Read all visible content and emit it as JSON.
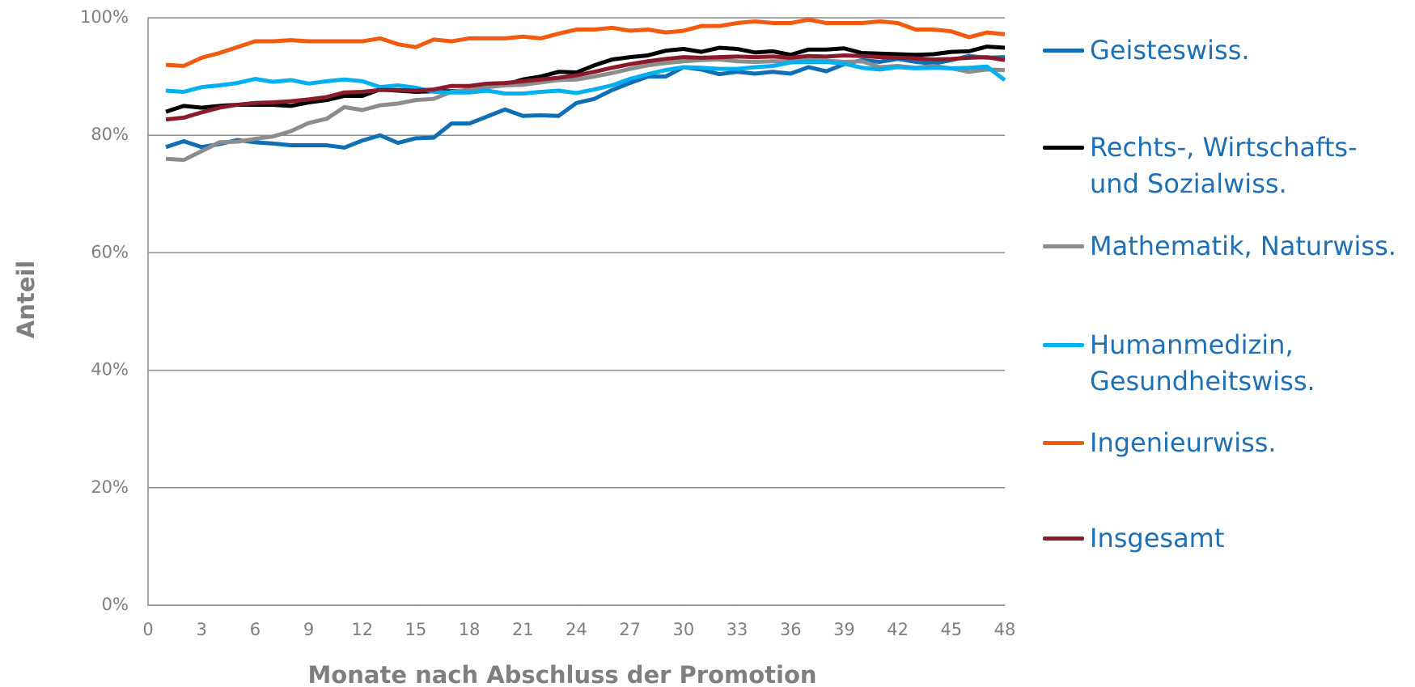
{
  "chart_data": {
    "type": "line",
    "xlabel": "Monate nach Abschluss der Promotion",
    "ylabel": "Anteil",
    "x": [
      1,
      2,
      3,
      4,
      5,
      6,
      7,
      8,
      9,
      10,
      11,
      12,
      13,
      14,
      15,
      16,
      17,
      18,
      19,
      20,
      21,
      22,
      23,
      24,
      25,
      26,
      27,
      28,
      29,
      30,
      31,
      32,
      33,
      34,
      35,
      36,
      37,
      38,
      39,
      40,
      41,
      42,
      43,
      44,
      45,
      46,
      47,
      48
    ],
    "xlim": [
      0,
      48
    ],
    "xticks": [
      0,
      3,
      6,
      9,
      12,
      15,
      18,
      21,
      24,
      27,
      30,
      33,
      36,
      39,
      42,
      45,
      48
    ],
    "ylim": [
      0,
      100
    ],
    "yticks": [
      {
        "value": 0,
        "label": "0%"
      },
      {
        "value": 20,
        "label": "20%"
      },
      {
        "value": 40,
        "label": "40%"
      },
      {
        "value": 60,
        "label": "60%"
      },
      {
        "value": 80,
        "label": "80%"
      },
      {
        "value": 100,
        "label": "100%"
      }
    ],
    "grid": true,
    "legend": "right",
    "series": [
      {
        "name": "Geisteswiss.",
        "color": "#0f6eb4",
        "values": [
          78,
          79,
          78,
          78.5,
          79.2,
          78.8,
          78.6,
          78.3,
          78.3,
          78.3,
          77.9,
          79.1,
          80,
          78.7,
          79.5,
          79.6,
          82,
          82,
          83.2,
          84.4,
          83.3,
          83.4,
          83.3,
          85.5,
          86.2,
          87.7,
          88.9,
          90,
          90,
          91.6,
          91.2,
          90.4,
          90.8,
          90.5,
          90.8,
          90.5,
          91.6,
          90.9,
          92.1,
          92.8,
          92.5,
          93,
          92.5,
          92.2,
          92.8,
          93.5,
          93.2,
          93.3
        ]
      },
      {
        "name": "Rechts-, Wirtschafts- und Sozialwiss.",
        "color": "#000000",
        "values": [
          84,
          85,
          84.7,
          85,
          85.2,
          85.2,
          85.2,
          85,
          85.6,
          86,
          86.7,
          86.7,
          87.8,
          87.6,
          87.4,
          87.5,
          87.5,
          87.6,
          88.2,
          88.6,
          89.5,
          90,
          90.8,
          90.7,
          91.9,
          92.9,
          93.3,
          93.6,
          94.4,
          94.7,
          94.2,
          94.9,
          94.7,
          94.1,
          94.3,
          93.7,
          94.6,
          94.6,
          94.8,
          94,
          93.9,
          93.8,
          93.7,
          93.8,
          94.2,
          94.3,
          95.1,
          94.9
        ]
      },
      {
        "name": "Mathematik, Naturwiss.",
        "color": "#8c8c8c",
        "values": [
          76,
          75.8,
          77.3,
          78.8,
          78.9,
          79.4,
          79.8,
          80.7,
          82.1,
          82.8,
          84.8,
          84.3,
          85.1,
          85.4,
          86,
          86.2,
          87.4,
          87.8,
          88.2,
          88.5,
          88.6,
          89,
          89.4,
          89.5,
          90,
          90.6,
          91.3,
          91.9,
          92.3,
          92.6,
          92.8,
          92.9,
          92.6,
          92.5,
          92.6,
          92.6,
          92.8,
          92.7,
          92.5,
          92.6,
          91.6,
          91.8,
          91.5,
          91.8,
          91.4,
          90.8,
          91.2,
          91.1
        ]
      },
      {
        "name": "Humanmedizin, Gesundheitswiss.",
        "color": "#00b0f0",
        "values": [
          87.6,
          87.4,
          88.2,
          88.5,
          88.9,
          89.6,
          89.1,
          89.4,
          88.8,
          89.2,
          89.5,
          89.2,
          88.2,
          88.5,
          88.1,
          87.4,
          87.3,
          87.3,
          87.6,
          87.1,
          87.1,
          87.4,
          87.6,
          87.2,
          87.8,
          88.5,
          89.6,
          90.4,
          91.1,
          91.6,
          91.5,
          91.3,
          91.3,
          91.6,
          91.8,
          92.4,
          92.5,
          92.5,
          92.2,
          91.5,
          91.2,
          91.6,
          91.4,
          91.5,
          91.4,
          91.5,
          91.7,
          89.4
        ]
      },
      {
        "name": "Ingenieurwiss.",
        "color": "#f15a0f",
        "values": [
          92,
          91.8,
          93.2,
          94,
          95,
          96,
          96,
          96.2,
          96,
          96,
          96,
          96,
          96.5,
          95.5,
          95,
          96.3,
          96,
          96.5,
          96.5,
          96.5,
          96.8,
          96.5,
          97.3,
          98,
          98,
          98.3,
          97.8,
          98,
          97.5,
          97.8,
          98.6,
          98.6,
          99.1,
          99.4,
          99.1,
          99.1,
          99.7,
          99.1,
          99.1,
          99.1,
          99.4,
          99.1,
          98,
          98,
          97.7,
          96.7,
          97.5,
          97.2
        ]
      },
      {
        "name": "Insgesamt",
        "color": "#8b1a2b",
        "values": [
          82.7,
          83,
          83.9,
          84.7,
          85.2,
          85.5,
          85.6,
          85.8,
          86.1,
          86.5,
          87.3,
          87.4,
          87.7,
          87.7,
          87.6,
          87.8,
          88.4,
          88.4,
          88.8,
          88.9,
          89.2,
          89.5,
          89.8,
          90.2,
          90.8,
          91.5,
          92.1,
          92.6,
          93,
          93.3,
          93.2,
          93.3,
          93.4,
          93.3,
          93.4,
          93.2,
          93.5,
          93.4,
          93.6,
          93.5,
          93.3,
          93.2,
          93.1,
          92.9,
          93,
          93.2,
          93.3,
          92.8
        ]
      }
    ]
  }
}
